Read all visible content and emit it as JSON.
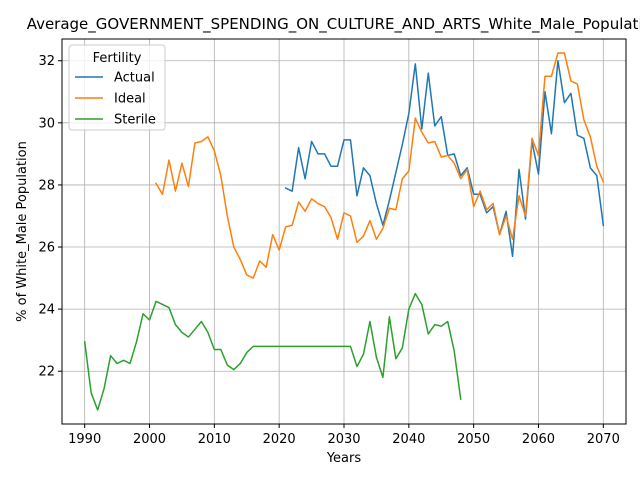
{
  "chart_data": {
    "type": "line",
    "title": "Average_GOVERNMENT_SPENDING_ON_CULTURE_AND_ARTS_White_Male_Population",
    "xlabel": "Years",
    "ylabel": "% of White_Male Population",
    "xlim": [
      1986.5,
      2073.5
    ],
    "ylim": [
      20.3,
      32.7
    ],
    "xticks": [
      1990,
      2000,
      2010,
      2020,
      2030,
      2040,
      2050,
      2060,
      2070
    ],
    "yticks": [
      22,
      24,
      26,
      28,
      30,
      32
    ],
    "grid": true,
    "legend": {
      "title": "Fertility",
      "position": "top-left"
    },
    "series": [
      {
        "name": "Actual",
        "color": "#1f77b4",
        "x": [
          2021,
          2022,
          2023,
          2024,
          2025,
          2026,
          2027,
          2028,
          2029,
          2030,
          2031,
          2032,
          2033,
          2034,
          2035,
          2036,
          2037,
          2038,
          2039,
          2040,
          2041,
          2042,
          2043,
          2044,
          2045,
          2046,
          2047,
          2048,
          2049,
          2050,
          2051,
          2052,
          2053,
          2054,
          2055,
          2056,
          2057,
          2058,
          2059,
          2060,
          2061,
          2062,
          2063,
          2064,
          2065,
          2066,
          2067,
          2068,
          2069,
          2070
        ],
        "y": [
          27.9,
          27.8,
          29.2,
          28.2,
          29.4,
          29.0,
          29.0,
          28.6,
          28.6,
          29.45,
          29.45,
          27.65,
          28.55,
          28.3,
          27.4,
          26.7,
          27.5,
          28.4,
          29.3,
          30.3,
          31.9,
          29.8,
          31.6,
          29.9,
          30.2,
          28.95,
          29.0,
          28.3,
          28.55,
          27.7,
          27.7,
          27.1,
          27.3,
          26.4,
          27.15,
          25.7,
          28.5,
          26.9,
          29.4,
          28.35,
          31.0,
          29.65,
          32.0,
          30.65,
          30.95,
          29.6,
          29.5,
          28.55,
          28.3,
          26.7
        ]
      },
      {
        "name": "Ideal",
        "color": "#ff7f0e",
        "x": [
          2001,
          2002,
          2003,
          2004,
          2005,
          2006,
          2007,
          2008,
          2009,
          2010,
          2011,
          2012,
          2013,
          2014,
          2015,
          2016,
          2017,
          2018,
          2019,
          2020,
          2021,
          2022,
          2023,
          2024,
          2025,
          2026,
          2027,
          2028,
          2029,
          2030,
          2031,
          2032,
          2033,
          2034,
          2035,
          2036,
          2037,
          2038,
          2039,
          2040,
          2041,
          2042,
          2043,
          2044,
          2045,
          2046,
          2047,
          2048,
          2049,
          2050,
          2051,
          2052,
          2053,
          2054,
          2055,
          2056,
          2057,
          2058,
          2059,
          2060,
          2061,
          2062,
          2063,
          2064,
          2065,
          2066,
          2067,
          2068,
          2069,
          2070
        ],
        "y": [
          28.05,
          27.7,
          28.8,
          27.8,
          28.7,
          27.95,
          29.35,
          29.4,
          29.55,
          29.1,
          28.3,
          27.0,
          26.0,
          25.6,
          25.1,
          25.0,
          25.55,
          25.35,
          26.4,
          25.9,
          26.65,
          26.7,
          27.45,
          27.15,
          27.55,
          27.4,
          27.3,
          26.95,
          26.25,
          27.1,
          27.0,
          26.15,
          26.35,
          26.85,
          26.25,
          26.6,
          27.25,
          27.2,
          28.2,
          28.45,
          30.15,
          29.7,
          29.35,
          29.4,
          28.9,
          28.95,
          28.7,
          28.2,
          28.5,
          27.3,
          27.8,
          27.2,
          27.4,
          26.4,
          27.0,
          26.25,
          27.65,
          27.0,
          29.5,
          28.95,
          31.5,
          31.5,
          32.25,
          32.25,
          31.35,
          31.25,
          30.1,
          29.55,
          28.6,
          28.1
        ]
      },
      {
        "name": "Sterile",
        "color": "#2ca02c",
        "x": [
          1990,
          1991,
          1992,
          1993,
          1994,
          1995,
          1996,
          1997,
          1998,
          1999,
          2000,
          2001,
          2002,
          2003,
          2004,
          2005,
          2006,
          2007,
          2008,
          2009,
          2010,
          2011,
          2012,
          2013,
          2014,
          2015,
          2016,
          2017,
          2018,
          2019,
          2020,
          2021,
          2022,
          2023,
          2024,
          2025,
          2026,
          2027,
          2028,
          2029,
          2030,
          2031,
          2032,
          2033,
          2034,
          2035,
          2036,
          2037,
          2038,
          2039,
          2040,
          2041,
          2042,
          2043,
          2044,
          2045,
          2046,
          2047,
          2048
        ],
        "y": [
          22.95,
          21.3,
          20.75,
          21.45,
          22.5,
          22.25,
          22.35,
          22.25,
          22.95,
          23.85,
          23.65,
          24.25,
          24.15,
          24.05,
          23.5,
          23.25,
          23.1,
          23.35,
          23.6,
          23.25,
          22.7,
          22.7,
          22.2,
          22.05,
          22.25,
          22.6,
          22.8,
          22.8,
          22.8,
          22.8,
          22.8,
          22.8,
          22.8,
          22.8,
          22.8,
          22.8,
          22.8,
          22.8,
          22.8,
          22.8,
          22.8,
          22.8,
          22.15,
          22.55,
          23.6,
          22.45,
          21.8,
          23.75,
          22.4,
          22.75,
          24.0,
          24.5,
          24.15,
          23.2,
          23.5,
          23.45,
          23.6,
          22.65,
          21.1
        ]
      }
    ]
  }
}
